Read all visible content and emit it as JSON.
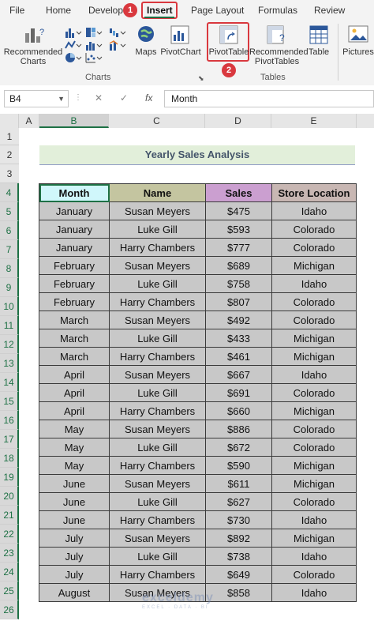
{
  "ribbon_tabs": {
    "file": "File",
    "home": "Home",
    "developer": "Develope",
    "insert": "Insert",
    "page_layout": "Page Layout",
    "formulas": "Formulas",
    "review": "Review"
  },
  "badges": {
    "one": "1",
    "two": "2"
  },
  "ribbon": {
    "recommended_charts_l1": "Recommended",
    "recommended_charts_l2": "Charts",
    "maps": "Maps",
    "pivot_chart": "PivotChart",
    "pivot_table": "PivotTable",
    "recommended_pivot_l1": "Recommended",
    "recommended_pivot_l2": "PivotTables",
    "table": "Table",
    "pictures": "Pictures",
    "group_charts": "Charts",
    "group_tables": "Tables"
  },
  "formula_bar": {
    "name_box": "B4",
    "formula_value": "Month",
    "fx": "fx",
    "cancel": "✕",
    "enter": "✓"
  },
  "column_headers": [
    "A",
    "B",
    "C",
    "D",
    "E"
  ],
  "row_numbers": [
    "1",
    "2",
    "3",
    "4",
    "5",
    "6",
    "7",
    "8",
    "9",
    "10",
    "11",
    "12",
    "13",
    "14",
    "15",
    "16",
    "17",
    "18",
    "19",
    "20",
    "21",
    "22",
    "23",
    "24",
    "25",
    "26"
  ],
  "sheet": {
    "title": "Yearly Sales Analysis",
    "headers": [
      "Month",
      "Name",
      "Sales",
      "Store Location"
    ],
    "rows": [
      [
        "January",
        "Susan Meyers",
        "$475",
        "Idaho"
      ],
      [
        "January",
        "Luke Gill",
        "$593",
        "Colorado"
      ],
      [
        "January",
        "Harry Chambers",
        "$777",
        "Colorado"
      ],
      [
        "February",
        "Susan Meyers",
        "$689",
        "Michigan"
      ],
      [
        "February",
        "Luke Gill",
        "$758",
        "Idaho"
      ],
      [
        "February",
        "Harry Chambers",
        "$807",
        "Colorado"
      ],
      [
        "March",
        "Susan Meyers",
        "$492",
        "Colorado"
      ],
      [
        "March",
        "Luke Gill",
        "$433",
        "Michigan"
      ],
      [
        "March",
        "Harry Chambers",
        "$461",
        "Michigan"
      ],
      [
        "April",
        "Susan Meyers",
        "$667",
        "Idaho"
      ],
      [
        "April",
        "Luke Gill",
        "$691",
        "Colorado"
      ],
      [
        "April",
        "Harry Chambers",
        "$660",
        "Michigan"
      ],
      [
        "May",
        "Susan Meyers",
        "$886",
        "Colorado"
      ],
      [
        "May",
        "Luke Gill",
        "$672",
        "Colorado"
      ],
      [
        "May",
        "Harry Chambers",
        "$590",
        "Michigan"
      ],
      [
        "June",
        "Susan Meyers",
        "$611",
        "Michigan"
      ],
      [
        "June",
        "Luke Gill",
        "$627",
        "Colorado"
      ],
      [
        "June",
        "Harry Chambers",
        "$730",
        "Idaho"
      ],
      [
        "July",
        "Susan Meyers",
        "$892",
        "Michigan"
      ],
      [
        "July",
        "Luke Gill",
        "$738",
        "Idaho"
      ],
      [
        "July",
        "Harry Chambers",
        "$649",
        "Colorado"
      ],
      [
        "August",
        "Susan Meyers",
        "$858",
        "Idaho"
      ]
    ]
  },
  "header_colors": {
    "month": "#d0f7fb",
    "name": "#c4c5a0",
    "sales": "#cb9fd0",
    "store": "#c8b7b3"
  },
  "accent_green": "#1e7145",
  "highlight_red": "#d9383e",
  "watermark": {
    "brand": "exceldemy",
    "tagline": "EXCEL · DATA · BI"
  }
}
